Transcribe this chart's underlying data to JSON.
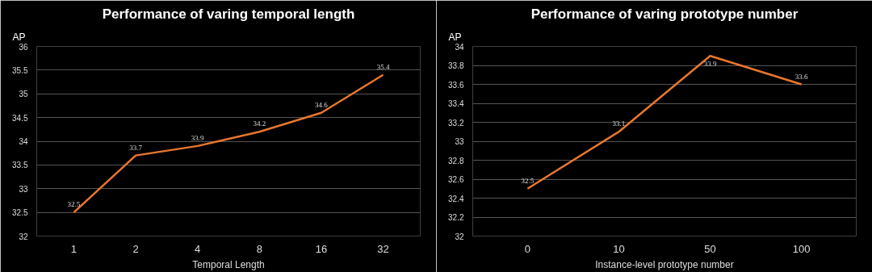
{
  "chart_data": [
    {
      "type": "line",
      "title": "Performance of varing temporal length",
      "xlabel": "Temporal Length",
      "ylabel": "AP",
      "categories": [
        "1",
        "2",
        "4",
        "8",
        "16",
        "32"
      ],
      "series": [
        {
          "color": "#e8772e",
          "values": [
            32.5,
            33.7,
            33.9,
            34.2,
            34.6,
            35.4
          ]
        }
      ],
      "ylim": [
        32,
        36
      ],
      "yticks": [
        32,
        32.5,
        33,
        33.5,
        34,
        34.5,
        35,
        35.5,
        36
      ],
      "grid": "y",
      "data_labels": true,
      "marker": "none",
      "line_style": "solid"
    },
    {
      "type": "line",
      "title": "Performance of varing prototype number",
      "xlabel": "Instance-level prototype number",
      "ylabel": "AP",
      "categories": [
        "0",
        "10",
        "50",
        "100"
      ],
      "series": [
        {
          "color": "#e8772e",
          "values": [
            32.5,
            33.1,
            33.9,
            33.6
          ]
        }
      ],
      "ylim": [
        32,
        34
      ],
      "yticks": [
        32,
        32.2,
        32.4,
        32.6,
        32.8,
        33,
        33.2,
        33.4,
        33.6,
        33.8,
        34
      ],
      "grid": "y",
      "data_labels": true,
      "marker": "none",
      "line_style": "solid"
    }
  ]
}
